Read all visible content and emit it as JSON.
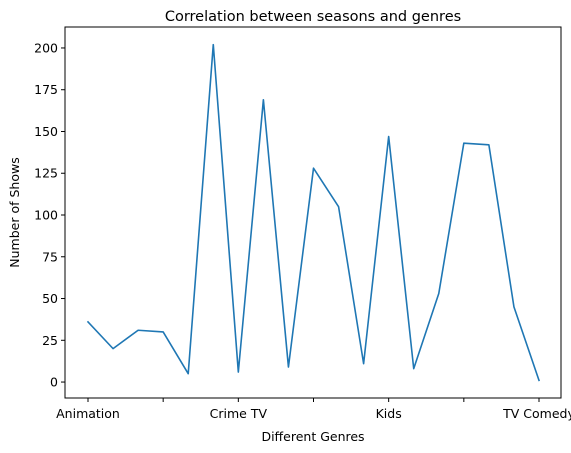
{
  "chart_data": {
    "type": "line",
    "title": "Correlation between seasons and genres",
    "xlabel": "Different Genres",
    "ylabel": "Number of Shows",
    "x_tick_labels": [
      "Animation",
      "",
      "Crime TV",
      "",
      "Kids",
      "",
      "TV Comedy",
      ""
    ],
    "y_ticks": [
      0,
      25,
      50,
      75,
      100,
      125,
      150,
      175,
      200
    ],
    "ylim": [
      -9.55,
      212.55
    ],
    "grid": false,
    "series": [
      {
        "color": "#1f77b4",
        "values": [
          36,
          20,
          31,
          30,
          5,
          202,
          6,
          169,
          9,
          128,
          105,
          11,
          147,
          8,
          53,
          143,
          142,
          45,
          1
        ]
      }
    ]
  }
}
